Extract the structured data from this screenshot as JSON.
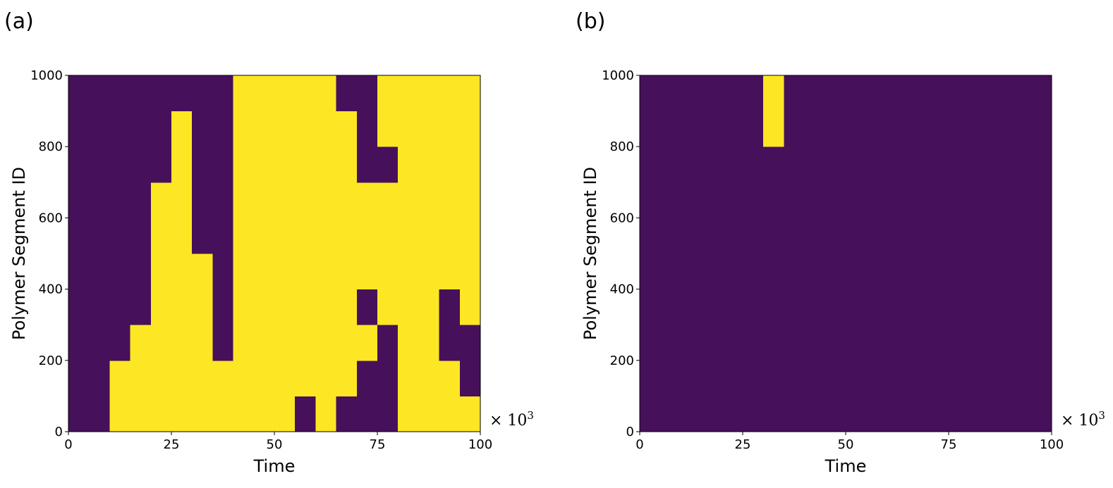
{
  "chart_data": [
    {
      "type": "heatmap",
      "panel_label": "(a)",
      "xlabel": "Time",
      "ylabel": "Polymer Segment ID",
      "xlim": [
        0,
        100
      ],
      "ylim": [
        0,
        1000
      ],
      "xticks": [
        0,
        25,
        50,
        75,
        100
      ],
      "yticks": [
        0,
        200,
        400,
        600,
        800,
        1000
      ],
      "x_offset_label": {
        "base": "× 10",
        "exponent": "3"
      },
      "colormap": [
        "#46105a",
        "#fde724"
      ],
      "x_edges": [
        0,
        5,
        10,
        15,
        20,
        25,
        30,
        35,
        40,
        45,
        50,
        55,
        60,
        65,
        70,
        75,
        80,
        85,
        90,
        95,
        100
      ],
      "y_edges": [
        0,
        100,
        200,
        300,
        400,
        500,
        600,
        700,
        800,
        900,
        1000
      ],
      "z": [
        [
          0,
          0,
          1,
          1,
          1,
          1,
          1,
          1,
          1,
          1,
          1,
          0,
          1,
          0,
          0,
          0,
          1,
          1,
          1,
          1
        ],
        [
          0,
          0,
          1,
          1,
          1,
          1,
          1,
          1,
          1,
          1,
          1,
          1,
          1,
          1,
          0,
          0,
          1,
          1,
          1,
          0
        ],
        [
          0,
          0,
          0,
          1,
          1,
          1,
          1,
          0,
          1,
          1,
          1,
          1,
          1,
          1,
          1,
          0,
          1,
          1,
          0,
          0
        ],
        [
          0,
          0,
          0,
          0,
          1,
          1,
          1,
          0,
          1,
          1,
          1,
          1,
          1,
          1,
          0,
          1,
          1,
          1,
          0,
          1
        ],
        [
          0,
          0,
          0,
          0,
          1,
          1,
          1,
          0,
          1,
          1,
          1,
          1,
          1,
          1,
          1,
          1,
          1,
          1,
          1,
          1
        ],
        [
          0,
          0,
          0,
          0,
          1,
          1,
          0,
          0,
          1,
          1,
          1,
          1,
          1,
          1,
          1,
          1,
          1,
          1,
          1,
          1
        ],
        [
          0,
          0,
          0,
          0,
          1,
          1,
          0,
          0,
          1,
          1,
          1,
          1,
          1,
          1,
          1,
          1,
          1,
          1,
          1,
          1
        ],
        [
          0,
          0,
          0,
          0,
          0,
          1,
          0,
          0,
          1,
          1,
          1,
          1,
          1,
          1,
          0,
          0,
          1,
          1,
          1,
          1
        ],
        [
          0,
          0,
          0,
          0,
          0,
          1,
          0,
          0,
          1,
          1,
          1,
          1,
          1,
          1,
          0,
          1,
          1,
          1,
          1,
          1
        ],
        [
          0,
          0,
          0,
          0,
          0,
          0,
          0,
          0,
          1,
          1,
          1,
          1,
          1,
          0,
          0,
          1,
          1,
          1,
          1,
          1
        ]
      ]
    },
    {
      "type": "heatmap",
      "panel_label": "(b)",
      "xlabel": "Time",
      "ylabel": "Polymer Segment ID",
      "xlim": [
        0,
        100
      ],
      "ylim": [
        0,
        1000
      ],
      "xticks": [
        0,
        25,
        50,
        75,
        100
      ],
      "yticks": [
        0,
        200,
        400,
        600,
        800,
        1000
      ],
      "x_offset_label": {
        "base": "× 10",
        "exponent": "3"
      },
      "colormap": [
        "#46105a",
        "#fde724"
      ],
      "x_edges": [
        0,
        5,
        10,
        15,
        20,
        25,
        30,
        35,
        40,
        45,
        50,
        55,
        60,
        65,
        70,
        75,
        80,
        85,
        90,
        95,
        100
      ],
      "y_edges": [
        0,
        100,
        200,
        300,
        400,
        500,
        600,
        700,
        800,
        900,
        1000
      ],
      "z": [
        [
          0,
          0,
          0,
          0,
          0,
          0,
          0,
          0,
          0,
          0,
          0,
          0,
          0,
          0,
          0,
          0,
          0,
          0,
          0,
          0
        ],
        [
          0,
          0,
          0,
          0,
          0,
          0,
          0,
          0,
          0,
          0,
          0,
          0,
          0,
          0,
          0,
          0,
          0,
          0,
          0,
          0
        ],
        [
          0,
          0,
          0,
          0,
          0,
          0,
          0,
          0,
          0,
          0,
          0,
          0,
          0,
          0,
          0,
          0,
          0,
          0,
          0,
          0
        ],
        [
          0,
          0,
          0,
          0,
          0,
          0,
          0,
          0,
          0,
          0,
          0,
          0,
          0,
          0,
          0,
          0,
          0,
          0,
          0,
          0
        ],
        [
          0,
          0,
          0,
          0,
          0,
          0,
          0,
          0,
          0,
          0,
          0,
          0,
          0,
          0,
          0,
          0,
          0,
          0,
          0,
          0
        ],
        [
          0,
          0,
          0,
          0,
          0,
          0,
          0,
          0,
          0,
          0,
          0,
          0,
          0,
          0,
          0,
          0,
          0,
          0,
          0,
          0
        ],
        [
          0,
          0,
          0,
          0,
          0,
          0,
          0,
          0,
          0,
          0,
          0,
          0,
          0,
          0,
          0,
          0,
          0,
          0,
          0,
          0
        ],
        [
          0,
          0,
          0,
          0,
          0,
          0,
          0,
          0,
          0,
          0,
          0,
          0,
          0,
          0,
          0,
          0,
          0,
          0,
          0,
          0
        ],
        [
          0,
          0,
          0,
          0,
          0,
          0,
          1,
          0,
          0,
          0,
          0,
          0,
          0,
          0,
          0,
          0,
          0,
          0,
          0,
          0
        ],
        [
          0,
          0,
          0,
          0,
          0,
          0,
          1,
          0,
          0,
          0,
          0,
          0,
          0,
          0,
          0,
          0,
          0,
          0,
          0,
          0
        ]
      ]
    }
  ]
}
